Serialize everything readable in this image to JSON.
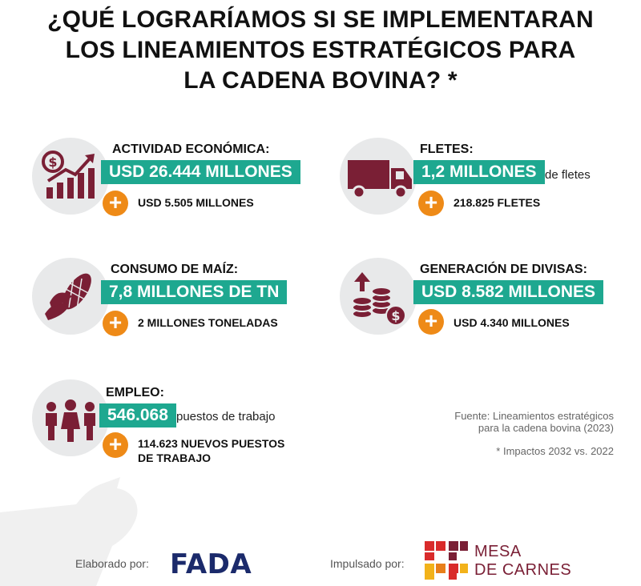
{
  "title": {
    "line1": "¿QUÉ LOGRARÍAMOS SI SE IMPLEMENTARAN",
    "line2": "LOS LINEAMIENTOS ESTRATÉGICOS PARA",
    "line3": "LA CADENA BOVINA? *"
  },
  "cards": {
    "actividad": {
      "icon": "dollar-growth-chart-icon",
      "label": "ACTIVIDAD ECONÓMICA:",
      "value": "USD 26.444 MILLONES",
      "suffix": "",
      "plus": "USD 5.505 MILLONES"
    },
    "fletes": {
      "icon": "truck-icon",
      "label": "FLETES:",
      "value": "1,2 MILLONES",
      "suffix": "de fletes",
      "plus": "218.825 FLETES"
    },
    "maiz": {
      "icon": "corn-icon",
      "label": "CONSUMO DE MAÍZ:",
      "value": "7,8 MILLONES DE TN",
      "suffix": "",
      "plus": "2 MILLONES TONELADAS"
    },
    "divisas": {
      "icon": "coins-arrow-icon",
      "label": "GENERACIÓN DE DIVISAS:",
      "value": "USD 8.582 MILLONES",
      "suffix": "",
      "plus": "USD 4.340 MILLONES"
    },
    "empleo": {
      "icon": "people-icon",
      "label": "EMPLEO:",
      "value": "546.068",
      "suffix": "puestos de trabajo",
      "plus_line1": "114.623 NUEVOS PUESTOS",
      "plus_line2": "DE TRABAJO"
    }
  },
  "source": {
    "line1": "Fuente: Lineamientos estratégicos",
    "line2": "para la cadena bovina (2023)",
    "note": "* Impactos 2032 vs. 2022"
  },
  "footer": {
    "elaborado_label": "Elaborado por:",
    "elaborado_logo": "FADA",
    "impulsado_label": "Impulsado por:",
    "mesa_line1": "MESA",
    "mesa_line2": "DE CARNES"
  },
  "colors": {
    "accent": "#1ea890",
    "plus": "#ee8a17",
    "icon": "#7a1f35",
    "circle": "#e8e9ea"
  }
}
